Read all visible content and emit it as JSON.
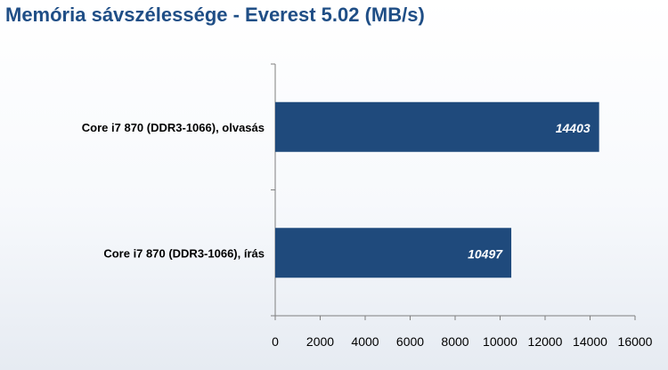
{
  "chart_data": {
    "type": "bar",
    "orientation": "horizontal",
    "title": "Memória sávszélessége - Everest 5.02 (MB/s)",
    "categories": [
      "Core i7 870 (DDR3-1066), olvasás",
      "Core i7 870 (DDR3-1066), írás"
    ],
    "values": [
      14403,
      10497
    ],
    "data_labels": [
      "14403",
      "10497"
    ],
    "xlim": [
      0,
      16000
    ],
    "ticks": [
      0,
      2000,
      4000,
      6000,
      8000,
      10000,
      12000,
      14000,
      16000
    ],
    "tick_labels": [
      "0",
      "2000",
      "4000",
      "6000",
      "8000",
      "10000",
      "12000",
      "14000",
      "16000"
    ],
    "grid": false,
    "legend": "none",
    "bar_color": "#1f4a7c",
    "title_color": "#1f4e86"
  }
}
